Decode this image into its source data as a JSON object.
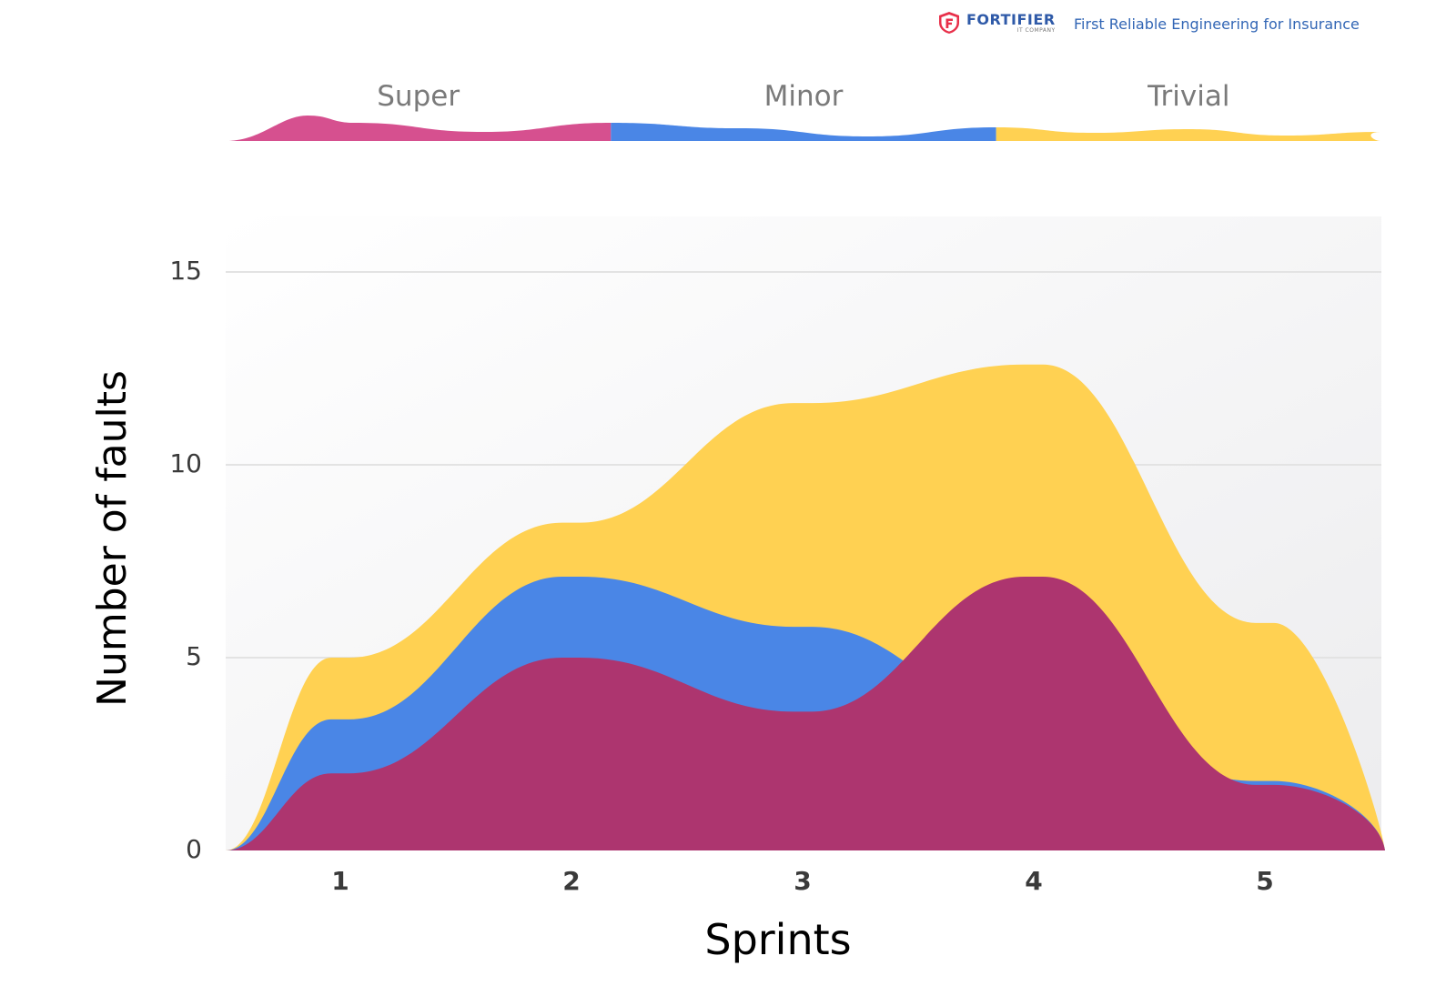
{
  "header": {
    "brand_name": "FORTIFIER",
    "brand_sub": "IT COMPANY",
    "tagline": "First Reliable Engineering for Insurance"
  },
  "chart_data": {
    "type": "area",
    "xlabel": "Sprints",
    "ylabel": "Number of faults",
    "categories": [
      "1",
      "2",
      "3",
      "4",
      "5"
    ],
    "x": [
      1,
      2,
      3,
      4,
      5
    ],
    "ylim": [
      0,
      16.5
    ],
    "yticks": [
      0,
      5,
      10,
      15
    ],
    "grid": true,
    "legend_position": "top",
    "series": [
      {
        "name": "Trivial",
        "values": [
          5,
          8.5,
          11.6,
          12.6,
          5.9
        ],
        "color": "#ffd152"
      },
      {
        "name": "Minor",
        "values": [
          3.4,
          7.1,
          5.8,
          3.5,
          1.8
        ],
        "color": "#4a86e6"
      },
      {
        "name": "Super",
        "values": [
          2,
          5,
          3.6,
          7.1,
          1.7
        ],
        "color": "#ad356f"
      }
    ],
    "legend_band": [
      {
        "label": "Super",
        "color": "#d6508f"
      },
      {
        "label": "Minor",
        "color": "#4a86e6"
      },
      {
        "label": "Trivial",
        "color": "#ffd152"
      }
    ],
    "colors": {
      "overlap": "#d44653",
      "grid": "#e3e3e3",
      "axis_text": "#3a3a3a",
      "legend_text": "#7a7a7a"
    }
  }
}
